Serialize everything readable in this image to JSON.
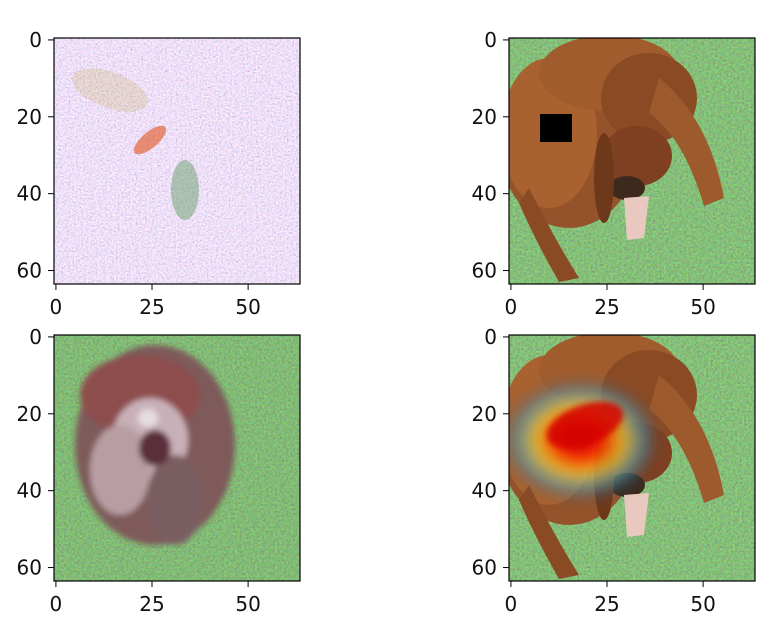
{
  "figure": {
    "panels": [
      {
        "id": "noise-visualization",
        "content": "colorful noisy pattern (gradient / saliency visualization)",
        "x_ticks": [
          "0",
          "25",
          "50"
        ],
        "y_ticks": [
          "0",
          "20",
          "40",
          "60"
        ]
      },
      {
        "id": "dog-occluded",
        "content": "brown dog on grass with black occlusion square",
        "x_ticks": [
          "0",
          "25",
          "50"
        ],
        "y_ticks": [
          "0",
          "20",
          "40",
          "60"
        ]
      },
      {
        "id": "dog-reconstruction",
        "content": "blurry reconstructed dog on grass",
        "x_ticks": [
          "0",
          "25",
          "50"
        ],
        "y_ticks": [
          "0",
          "20",
          "40",
          "60"
        ]
      },
      {
        "id": "dog-heatmap",
        "content": "brown dog on grass with jet colormap heatmap overlay",
        "x_ticks": [
          "0",
          "25",
          "50"
        ],
        "y_ticks": [
          "0",
          "20",
          "40",
          "60"
        ]
      }
    ],
    "colors": {
      "grass": "#4f7f3a",
      "dog": "#9a5a2e",
      "occlusion": "#000000",
      "heat_hot": "#d40000",
      "heat_warm": "#f4d21a",
      "heat_cool": "#3aa6c9"
    }
  }
}
